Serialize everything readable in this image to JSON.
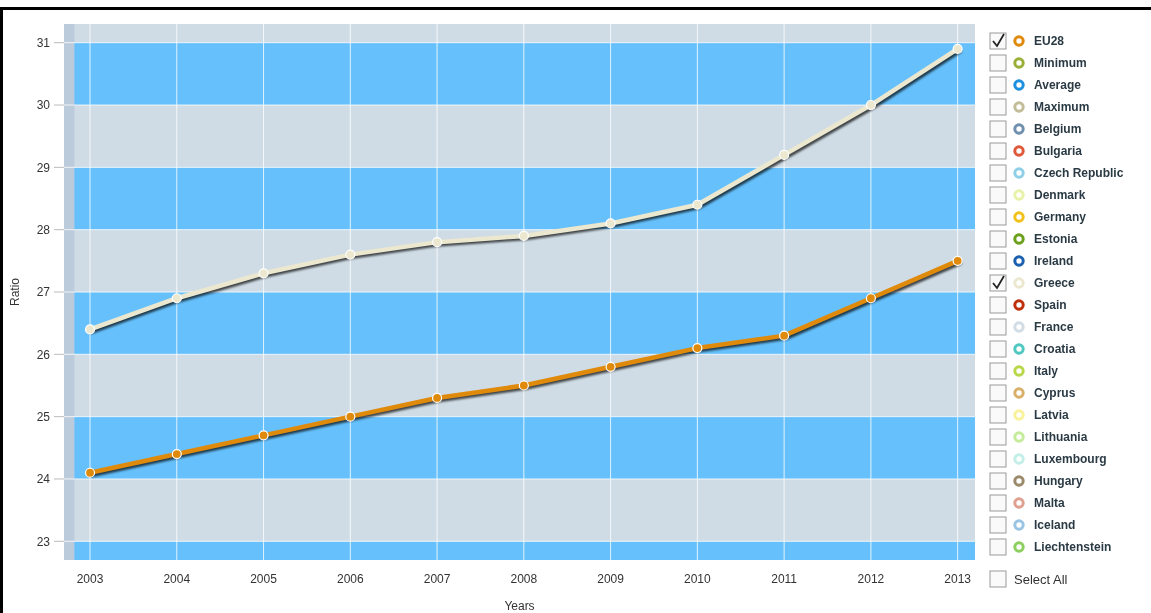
{
  "chart_data": {
    "type": "line",
    "xlabel": "Years",
    "ylabel": "Ratio",
    "x": [
      2003,
      2004,
      2005,
      2006,
      2007,
      2008,
      2009,
      2010,
      2011,
      2012,
      2013
    ],
    "xlim": [
      2002.7,
      2013.2
    ],
    "xticks": [
      2003,
      2004,
      2005,
      2006,
      2007,
      2008,
      2009,
      2010,
      2011,
      2012,
      2013
    ],
    "ylim": [
      22.7,
      31.3
    ],
    "yticks": [
      23,
      24,
      25,
      26,
      27,
      28,
      29,
      30,
      31
    ],
    "bands": [
      {
        "axis": "y",
        "from": 30,
        "to": 31,
        "color": "#66c0fb"
      },
      {
        "axis": "y",
        "from": 28,
        "to": 29,
        "color": "#66c0fb"
      },
      {
        "axis": "y",
        "from": 26,
        "to": 27,
        "color": "#66c0fb"
      },
      {
        "axis": "y",
        "from": 24,
        "to": 25,
        "color": "#66c0fb"
      },
      {
        "axis": "y",
        "from": 22.7,
        "to": 23,
        "color": "#66c0fb"
      },
      {
        "axis": "x",
        "from": 2002.7,
        "to": 2002.82,
        "color": "#bccbdb"
      }
    ],
    "grid": true,
    "legend": "right",
    "marker": "circle",
    "line_style": "solid",
    "series": [
      {
        "name": "EU28",
        "color": "#e08a0c",
        "values": [
          24.1,
          24.4,
          24.7,
          25.0,
          25.3,
          25.5,
          25.8,
          26.1,
          26.3,
          26.9,
          27.5
        ]
      },
      {
        "name": "Minimum",
        "color": "#9aaf3a",
        "values": [
          null,
          null,
          null,
          null,
          null,
          null,
          null,
          null,
          null,
          null,
          null
        ]
      },
      {
        "name": "Average",
        "color": "#1e90e0",
        "values": [
          null,
          null,
          null,
          null,
          null,
          null,
          null,
          null,
          null,
          null,
          null
        ]
      },
      {
        "name": "Maximum",
        "color": "#c2bc98",
        "values": [
          null,
          null,
          null,
          null,
          null,
          null,
          null,
          null,
          null,
          null,
          null
        ]
      },
      {
        "name": "Belgium",
        "color": "#6f8fae",
        "values": [
          null,
          null,
          null,
          null,
          null,
          null,
          null,
          null,
          null,
          null,
          null
        ]
      },
      {
        "name": "Bulgaria",
        "color": "#e0583a",
        "values": [
          null,
          null,
          null,
          null,
          null,
          null,
          null,
          null,
          null,
          null,
          null
        ]
      },
      {
        "name": "Czech Republic",
        "color": "#8fd0e8",
        "values": [
          null,
          null,
          null,
          null,
          null,
          null,
          null,
          null,
          null,
          null,
          null
        ]
      },
      {
        "name": "Denmark",
        "color": "#e8f2a8",
        "values": [
          null,
          null,
          null,
          null,
          null,
          null,
          null,
          null,
          null,
          null,
          null
        ]
      },
      {
        "name": "Germany",
        "color": "#f2c21a",
        "values": [
          null,
          null,
          null,
          null,
          null,
          null,
          null,
          null,
          null,
          null,
          null
        ]
      },
      {
        "name": "Estonia",
        "color": "#6aa01a",
        "values": [
          null,
          null,
          null,
          null,
          null,
          null,
          null,
          null,
          null,
          null,
          null
        ]
      },
      {
        "name": "Ireland",
        "color": "#1a5fb0",
        "values": [
          null,
          null,
          null,
          null,
          null,
          null,
          null,
          null,
          null,
          null,
          null
        ]
      },
      {
        "name": "Greece",
        "color": "#ece8d0",
        "values": [
          26.4,
          26.9,
          27.3,
          27.6,
          27.8,
          27.9,
          28.1,
          28.4,
          29.2,
          30.0,
          30.9
        ]
      },
      {
        "name": "Spain",
        "color": "#c0300a",
        "values": [
          null,
          null,
          null,
          null,
          null,
          null,
          null,
          null,
          null,
          null,
          null
        ]
      },
      {
        "name": "France",
        "color": "#d2dce4",
        "values": [
          null,
          null,
          null,
          null,
          null,
          null,
          null,
          null,
          null,
          null,
          null
        ]
      },
      {
        "name": "Croatia",
        "color": "#4ec8c0",
        "values": [
          null,
          null,
          null,
          null,
          null,
          null,
          null,
          null,
          null,
          null,
          null
        ]
      },
      {
        "name": "Italy",
        "color": "#b8d84a",
        "values": [
          null,
          null,
          null,
          null,
          null,
          null,
          null,
          null,
          null,
          null,
          null
        ]
      },
      {
        "name": "Cyprus",
        "color": "#d8b06a",
        "values": [
          null,
          null,
          null,
          null,
          null,
          null,
          null,
          null,
          null,
          null,
          null
        ]
      },
      {
        "name": "Latvia",
        "color": "#f8f29a",
        "values": [
          null,
          null,
          null,
          null,
          null,
          null,
          null,
          null,
          null,
          null,
          null
        ]
      },
      {
        "name": "Lithuania",
        "color": "#c4ec9a",
        "values": [
          null,
          null,
          null,
          null,
          null,
          null,
          null,
          null,
          null,
          null,
          null
        ]
      },
      {
        "name": "Luxembourg",
        "color": "#c4eee8",
        "values": [
          null,
          null,
          null,
          null,
          null,
          null,
          null,
          null,
          null,
          null,
          null
        ]
      },
      {
        "name": "Hungary",
        "color": "#9a8a6a",
        "values": [
          null,
          null,
          null,
          null,
          null,
          null,
          null,
          null,
          null,
          null,
          null
        ]
      },
      {
        "name": "Malta",
        "color": "#e0a090",
        "values": [
          null,
          null,
          null,
          null,
          null,
          null,
          null,
          null,
          null,
          null,
          null
        ]
      },
      {
        "name": "Iceland",
        "color": "#9ac4e4",
        "values": [
          null,
          null,
          null,
          null,
          null,
          null,
          null,
          null,
          null,
          null,
          null
        ]
      },
      {
        "name": "Liechtenstein",
        "color": "#8ed060",
        "values": [
          null,
          null,
          null,
          null,
          null,
          null,
          null,
          null,
          null,
          null,
          null
        ]
      }
    ],
    "annotations": [
      "Select All"
    ]
  }
}
